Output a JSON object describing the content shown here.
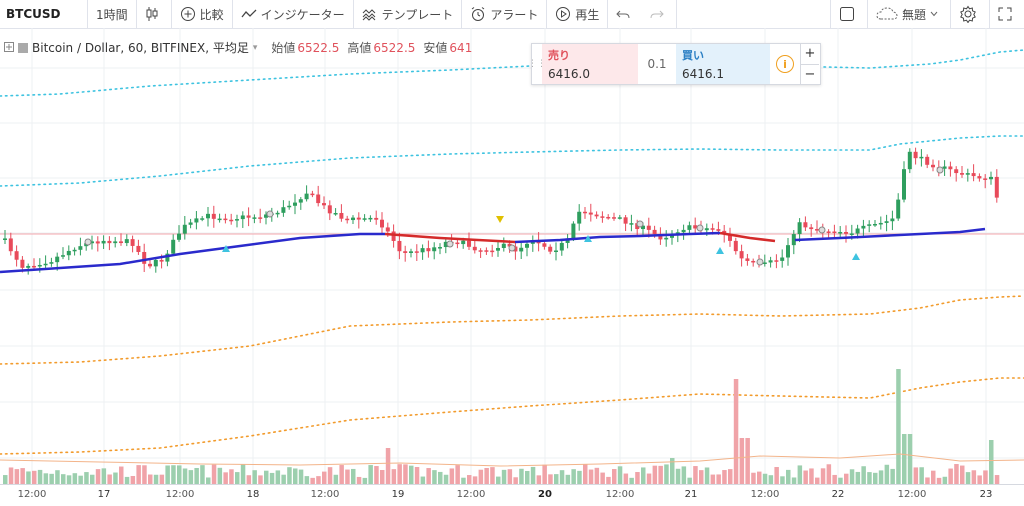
{
  "toolbar": {
    "symbol": "BTCUSD",
    "interval": "1時間",
    "compare": "比較",
    "indicators": "インジケーター",
    "template": "テンプレート",
    "alert": "アラート",
    "replay": "再生",
    "layout_name": "無題"
  },
  "legend": {
    "title": "Bitcoin / Dollar, 60, BITFINEX, 平均足",
    "open_label": "始値",
    "open_value": "6522.5",
    "high_label": "高値",
    "high_value": "6522.5",
    "low_label": "安値",
    "low_value": "641"
  },
  "trade_panel": {
    "sell_label": "売り",
    "sell_price": "6416.0",
    "spread": "0.1",
    "buy_label": "買い",
    "buy_price": "6416.1",
    "info_symbol": "i",
    "zoom_in": "+",
    "zoom_out": "−"
  },
  "time_axis": [
    {
      "label": "12:00",
      "style": "normal"
    },
    {
      "label": "17",
      "style": "day"
    },
    {
      "label": "12:00",
      "style": "normal"
    },
    {
      "label": "18",
      "style": "day"
    },
    {
      "label": "12:00",
      "style": "normal"
    },
    {
      "label": "19",
      "style": "day"
    },
    {
      "label": "12:00",
      "style": "normal"
    },
    {
      "label": "20",
      "style": "bold"
    },
    {
      "label": "12:00",
      "style": "normal"
    },
    {
      "label": "21",
      "style": "day"
    },
    {
      "label": "12:00",
      "style": "normal"
    },
    {
      "label": "22",
      "style": "day"
    },
    {
      "label": "12:00",
      "style": "normal"
    },
    {
      "label": "23",
      "style": "day"
    }
  ],
  "colors": {
    "up": "#2e9e5e",
    "down": "#e84a5a",
    "ma_up": "#2a2acc",
    "ma_down": "#d42a2a",
    "bb_outer": "#3ec3e0",
    "bb_inner": "#f29b2c",
    "volume_up": "#9ccfae",
    "volume_down": "#f0a3a8",
    "grid": "#eef0f3",
    "last_price": "#f4a7ae"
  },
  "icons": {
    "candle_type": "candlestick-icon",
    "compare": "plus-circle-icon",
    "indicators": "wave-icon",
    "template": "template-icon",
    "alert": "alarm-clock-icon",
    "replay": "play-circle-icon",
    "undo": "undo-icon",
    "redo": "redo-icon",
    "rect": "square-icon",
    "cloud": "cloud-icon",
    "settings": "gear-icon",
    "fullscreen": "fullscreen-icon"
  }
}
